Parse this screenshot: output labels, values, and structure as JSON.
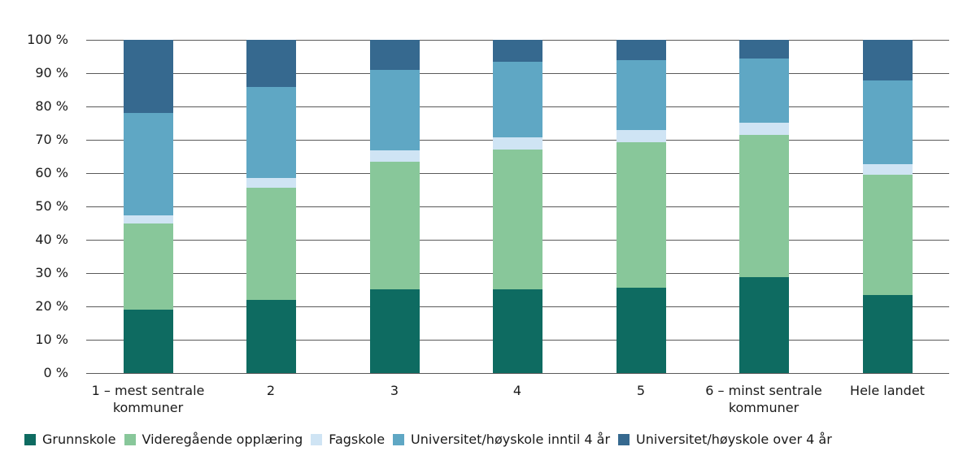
{
  "chart_data": {
    "type": "bar",
    "stacked": true,
    "title": "",
    "xlabel": "",
    "ylabel": "",
    "ylim": [
      0,
      100
    ],
    "yticks": [
      "0 %",
      "10 %",
      "20 %",
      "30 %",
      "40 %",
      "50 %",
      "60 %",
      "70 %",
      "80 %",
      "90 %",
      "100 %"
    ],
    "grid": true,
    "legend_position": "bottom",
    "categories": [
      "1 – mest sentrale kommuner",
      "2",
      "3",
      "4",
      "5",
      "6 – minst sentrale kommuner",
      "Hele landet"
    ],
    "category_lines": [
      [
        "1 – mest sentrale",
        "kommuner"
      ],
      [
        "2"
      ],
      [
        "3"
      ],
      [
        "4"
      ],
      [
        "5"
      ],
      [
        "6 – minst sentrale",
        "kommuner"
      ],
      [
        "Hele landet"
      ]
    ],
    "series": [
      {
        "name": "Grunnskole",
        "color": "#0e6b61",
        "values": [
          19.1,
          22.0,
          25.1,
          25.1,
          25.6,
          28.8,
          23.4
        ]
      },
      {
        "name": "Videregående opplæring",
        "color": "#88c79a",
        "values": [
          25.7,
          33.5,
          38.4,
          42.0,
          43.6,
          42.7,
          36.0
        ]
      },
      {
        "name": "Fagskole",
        "color": "#cfe4f4",
        "values": [
          2.4,
          3.0,
          3.4,
          3.6,
          3.7,
          3.7,
          3.2
        ]
      },
      {
        "name": "Universitet/høyskole inntil 4 år",
        "color": "#5fa7c4",
        "values": [
          30.8,
          27.3,
          24.1,
          22.6,
          21.0,
          19.2,
          25.3
        ]
      },
      {
        "name": "Universitet/høyskole over 4 år",
        "color": "#36698f",
        "values": [
          22.0,
          14.2,
          9.0,
          6.7,
          6.1,
          5.6,
          12.1
        ]
      }
    ]
  }
}
